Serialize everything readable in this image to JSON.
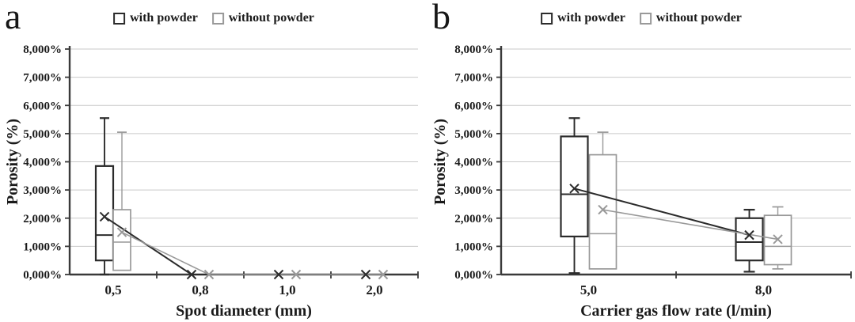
{
  "colors": {
    "axis": "#3a3a3a",
    "grid": "#c9c9c9",
    "text": "#1a1a1a",
    "series_dark": "#2b2b2b",
    "series_light": "#999999",
    "background": "#ffffff"
  },
  "chart_data": [
    {
      "type": "box",
      "panel_label": "a",
      "title": "",
      "xlabel": "Spot diameter (mm)",
      "ylabel": "Porosity (%)",
      "categories": [
        "0,5",
        "0,8",
        "1,0",
        "2,0"
      ],
      "ylim": [
        0,
        8
      ],
      "ytick_labels": [
        "0,000%",
        "1,000%",
        "2,000%",
        "3,000%",
        "4,000%",
        "5,000%",
        "6,000%",
        "7,000%",
        "8,000%"
      ],
      "grid": true,
      "legend_position": "top",
      "series": [
        {
          "name": "with powder",
          "color": "#2b2b2b",
          "boxes": [
            {
              "category": "0,5",
              "whisker_low": 0.0,
              "q1": 0.5,
              "median": 1.4,
              "q3": 3.85,
              "whisker_high": 5.55,
              "mean": 2.05
            },
            {
              "category": "0,8",
              "whisker_low": null,
              "q1": null,
              "median": null,
              "q3": null,
              "whisker_high": null,
              "mean": 0.0
            },
            {
              "category": "1,0",
              "whisker_low": null,
              "q1": null,
              "median": null,
              "q3": null,
              "whisker_high": null,
              "mean": 0.0
            },
            {
              "category": "2,0",
              "whisker_low": null,
              "q1": null,
              "median": null,
              "q3": null,
              "whisker_high": null,
              "mean": 0.0
            }
          ]
        },
        {
          "name": "without powder",
          "color": "#999999",
          "boxes": [
            {
              "category": "0,5",
              "whisker_low": 0.15,
              "q1": 0.15,
              "median": 1.15,
              "q3": 2.3,
              "whisker_high": 5.05,
              "mean": 1.5
            },
            {
              "category": "0,8",
              "whisker_low": null,
              "q1": null,
              "median": null,
              "q3": null,
              "whisker_high": null,
              "mean": 0.0
            },
            {
              "category": "1,0",
              "whisker_low": null,
              "q1": null,
              "median": null,
              "q3": null,
              "whisker_high": null,
              "mean": 0.0
            },
            {
              "category": "2,0",
              "whisker_low": null,
              "q1": null,
              "median": null,
              "q3": null,
              "whisker_high": null,
              "mean": 0.0
            }
          ]
        }
      ]
    },
    {
      "type": "box",
      "panel_label": "b",
      "title": "",
      "xlabel": "Carrier gas flow rate (l/min)",
      "ylabel": "Porosity (%)",
      "categories": [
        "5,0",
        "8,0"
      ],
      "ylim": [
        0,
        8
      ],
      "ytick_labels": [
        "0,000%",
        "1,000%",
        "2,000%",
        "3,000%",
        "4,000%",
        "5,000%",
        "6,000%",
        "7,000%",
        "8,000%"
      ],
      "grid": true,
      "legend_position": "top",
      "series": [
        {
          "name": "with powder",
          "color": "#2b2b2b",
          "boxes": [
            {
              "category": "5,0",
              "whisker_low": 0.05,
              "q1": 1.35,
              "median": 2.85,
              "q3": 4.9,
              "whisker_high": 5.55,
              "mean": 3.05
            },
            {
              "category": "8,0",
              "whisker_low": 0.1,
              "q1": 0.5,
              "median": 1.15,
              "q3": 2.0,
              "whisker_high": 2.3,
              "mean": 1.4
            }
          ]
        },
        {
          "name": "without powder",
          "color": "#999999",
          "boxes": [
            {
              "category": "5,0",
              "whisker_low": 0.2,
              "q1": 0.2,
              "median": 1.45,
              "q3": 4.25,
              "whisker_high": 5.05,
              "mean": 2.3
            },
            {
              "category": "8,0",
              "whisker_low": 0.2,
              "q1": 0.35,
              "median": 1.0,
              "q3": 2.1,
              "whisker_high": 2.4,
              "mean": 1.25
            }
          ]
        }
      ]
    }
  ]
}
